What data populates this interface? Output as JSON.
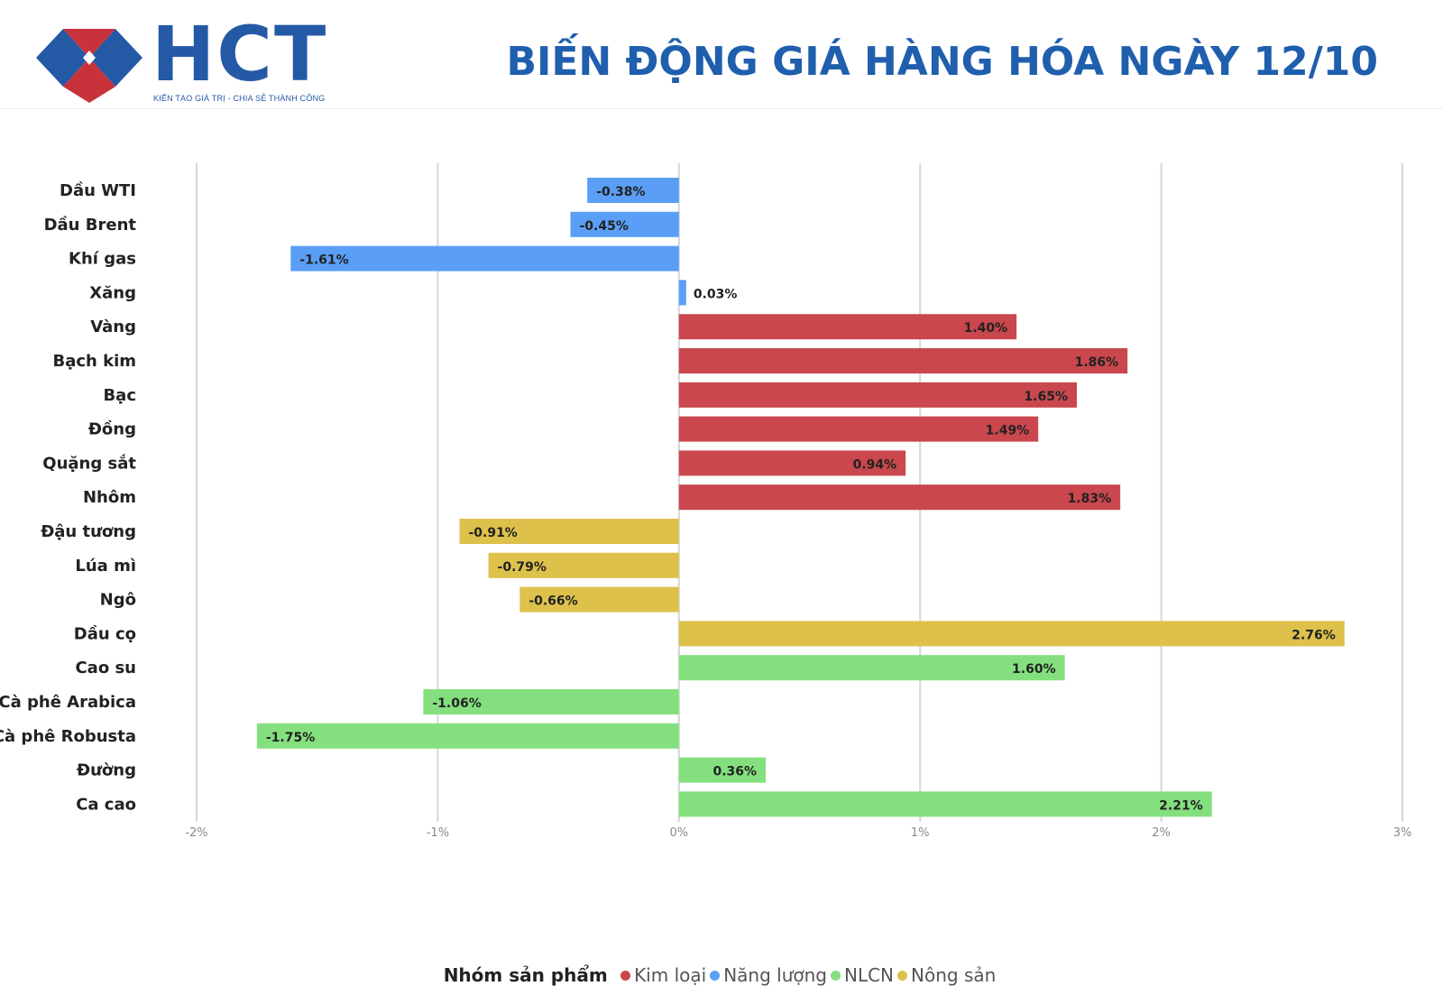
{
  "brand": {
    "name": "HCT",
    "tagline": "KIẾN TẠO GIÁ TRỊ - CHIA SẺ THÀNH CÔNG",
    "colors": {
      "blue": "#2459a6",
      "red": "#c8323a"
    }
  },
  "title": "BIẾN ĐỘNG GIÁ HÀNG HÓA NGÀY 12/10",
  "chart_data": {
    "type": "bar",
    "orientation": "horizontal",
    "title": "BIẾN ĐỘNG GIÁ HÀNG HÓA NGÀY 12/10",
    "xlabel": "",
    "ylabel": "",
    "xlim": [
      -2,
      3
    ],
    "x_ticks": [
      -2,
      -1,
      0,
      1,
      2,
      3
    ],
    "x_tick_labels": [
      "-2%",
      "-1%",
      "0%",
      "1%",
      "2%",
      "3%"
    ],
    "grid": "vertical",
    "legend_position": "bottom",
    "legend_title": "Nhóm sản phẩm",
    "groups": [
      {
        "name": "Kim loại",
        "color": "#c9474d"
      },
      {
        "name": "Năng lượng",
        "color": "#5a9ff5"
      },
      {
        "name": "NLCN",
        "color": "#84e07e"
      },
      {
        "name": "Nông sản",
        "color": "#ddc14b"
      }
    ],
    "categories": [
      "Dầu WTI",
      "Dầu Brent",
      "Khí gas",
      "Xăng",
      "Vàng",
      "Bạch kim",
      "Bạc",
      "Đồng",
      "Quặng sắt",
      "Nhôm",
      "Đậu tương",
      "Lúa mì",
      "Ngô",
      "Dầu cọ",
      "Cao su",
      "Cà phê Arabica",
      "Cà phê Robusta",
      "Đường",
      "Ca cao"
    ],
    "values": [
      -0.38,
      -0.45,
      -1.61,
      0.03,
      1.4,
      1.86,
      1.65,
      1.49,
      0.94,
      1.83,
      -0.91,
      -0.79,
      -0.66,
      2.76,
      1.6,
      -1.06,
      -1.75,
      0.36,
      2.21
    ],
    "value_labels": [
      "-0.38%",
      "-0.45%",
      "-1.61%",
      "0.03%",
      "1.40%",
      "1.86%",
      "1.65%",
      "1.49%",
      "0.94%",
      "1.83%",
      "-0.91%",
      "-0.79%",
      "-0.66%",
      "2.76%",
      "1.60%",
      "-1.06%",
      "-1.75%",
      "0.36%",
      "2.21%"
    ],
    "bar_groups": [
      "Năng lượng",
      "Năng lượng",
      "Năng lượng",
      "Năng lượng",
      "Kim loại",
      "Kim loại",
      "Kim loại",
      "Kim loại",
      "Kim loại",
      "Kim loại",
      "Nông sản",
      "Nông sản",
      "Nông sản",
      "Nông sản",
      "NLCN",
      "NLCN",
      "NLCN",
      "NLCN",
      "NLCN"
    ]
  }
}
